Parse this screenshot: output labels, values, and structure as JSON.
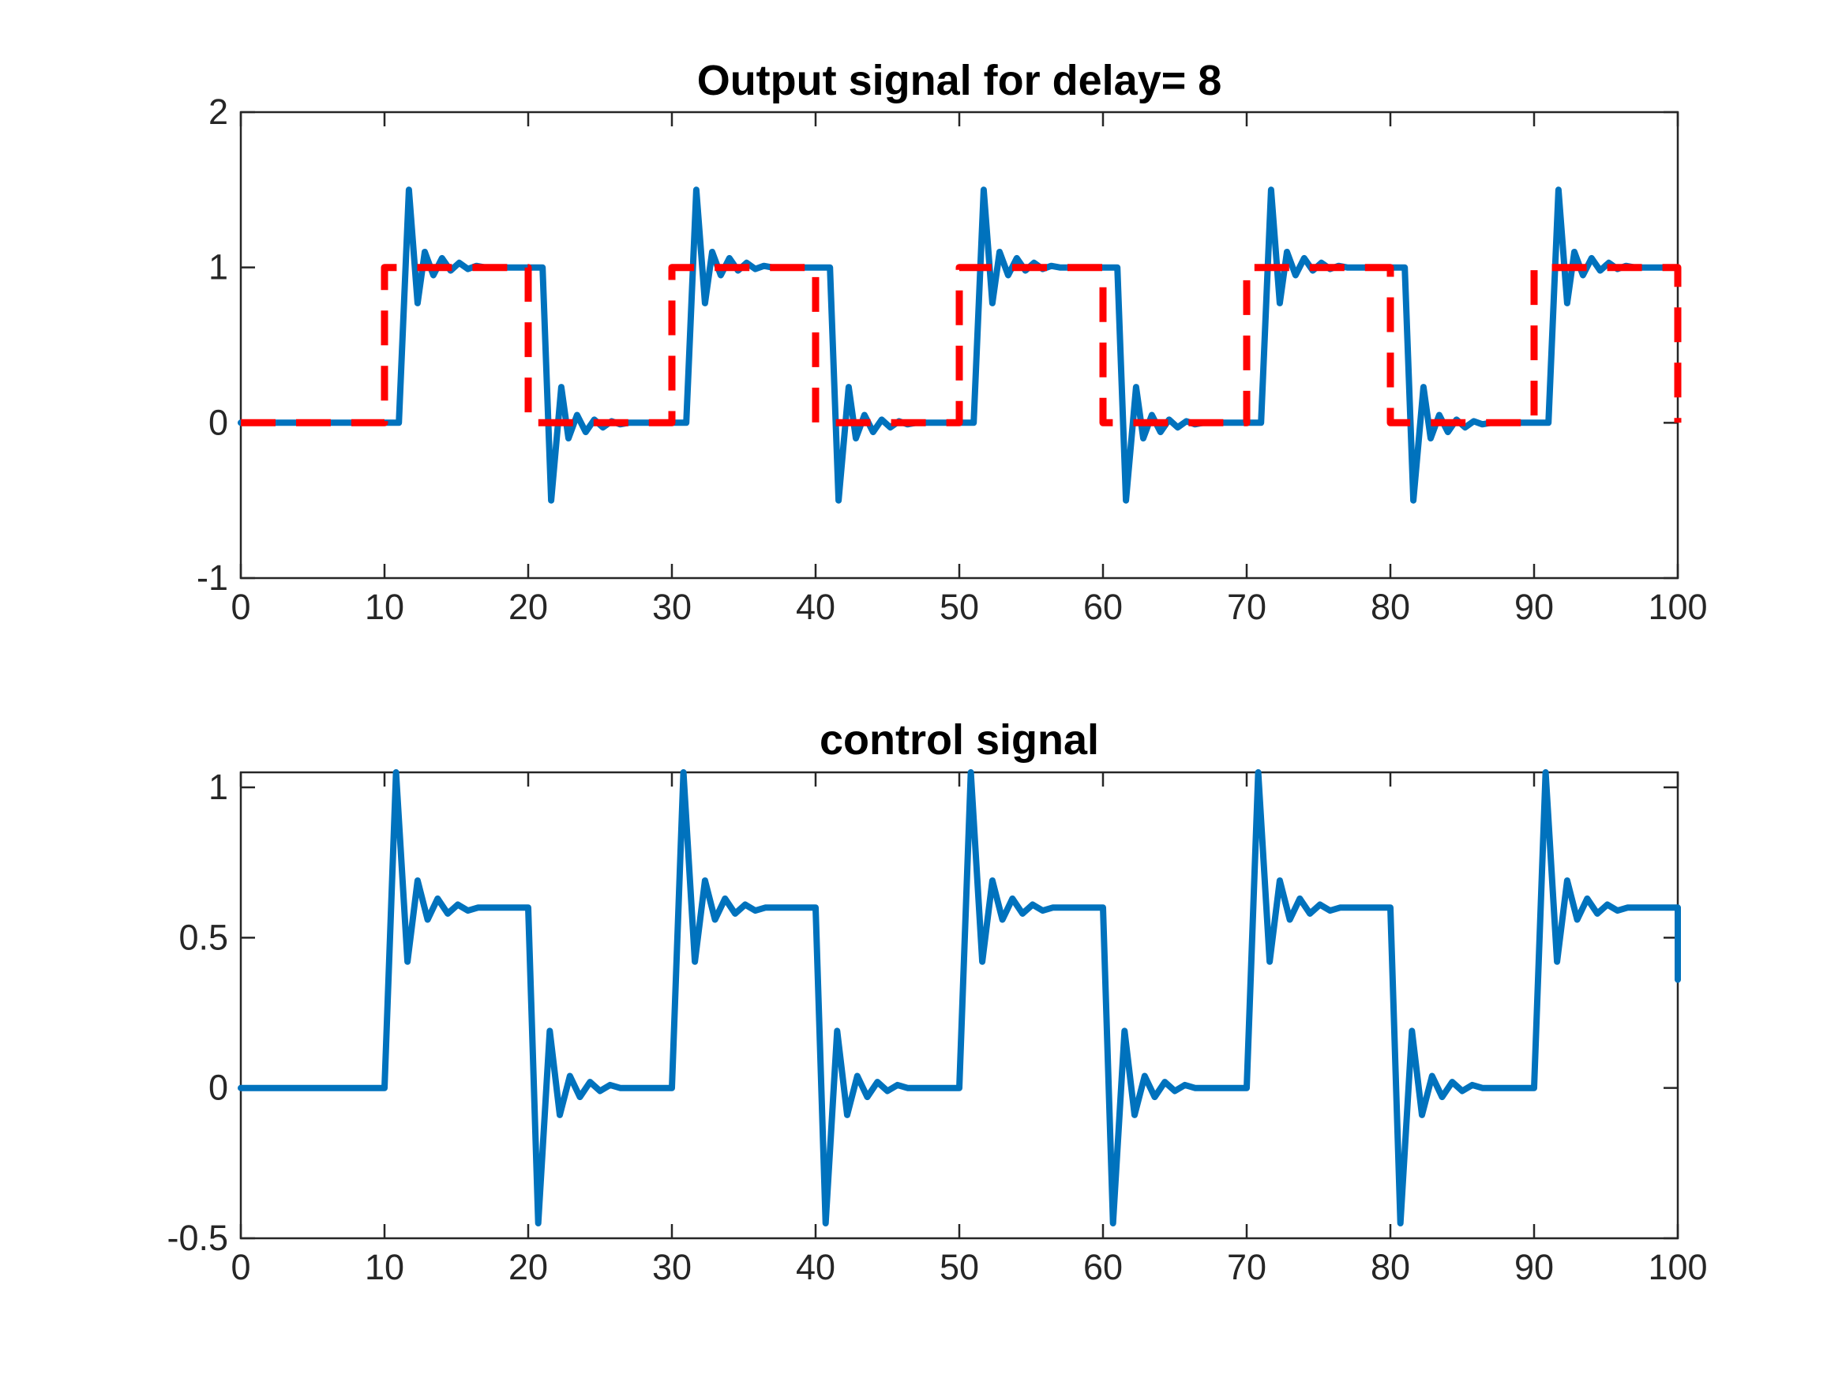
{
  "chart_data": [
    {
      "type": "line",
      "title": "Output signal for delay= 8",
      "xlabel": "",
      "ylabel": "",
      "xlim": [
        0,
        100
      ],
      "ylim": [
        -1,
        2
      ],
      "xticks": [
        0,
        10,
        20,
        30,
        40,
        50,
        60,
        70,
        80,
        90,
        100
      ],
      "yticks": [
        -1,
        0,
        1,
        2
      ],
      "grid": false,
      "colors": {
        "output": "#0072bd",
        "reference": "#ff0000"
      },
      "series": [
        {
          "style": "solid",
          "x": [
            0,
            11,
            11.7,
            12.3,
            12.8,
            13.4,
            14.0,
            14.6,
            15.2,
            15.8,
            16.4,
            17.0,
            17.6,
            18.2,
            20.0,
            21.0,
            21.6,
            22.3,
            22.8,
            23.4,
            24.0,
            24.6,
            25.2,
            25.8,
            26.4,
            27.0,
            28.0,
            31.0,
            31.7,
            32.3,
            32.8,
            33.4,
            34.0,
            34.6,
            35.2,
            35.8,
            36.4,
            37.0,
            37.6,
            38.2,
            40.0,
            41.0,
            41.6,
            42.3,
            42.8,
            43.4,
            44.0,
            44.6,
            45.2,
            45.8,
            46.4,
            47.0,
            48.0,
            51.0,
            51.7,
            52.3,
            52.8,
            53.4,
            54.0,
            54.6,
            55.2,
            55.8,
            56.4,
            57.0,
            57.6,
            58.2,
            60.0,
            61.0,
            61.6,
            62.3,
            62.8,
            63.4,
            64.0,
            64.6,
            65.2,
            65.8,
            66.4,
            67.0,
            68.0,
            71.0,
            71.7,
            72.3,
            72.8,
            73.4,
            74.0,
            74.6,
            75.2,
            75.8,
            76.4,
            77.0,
            77.6,
            78.2,
            80.0,
            81.0,
            81.6,
            82.3,
            82.8,
            83.4,
            84.0,
            84.6,
            85.2,
            85.8,
            86.4,
            87.0,
            88.0,
            91.0,
            91.7,
            92.3,
            92.8,
            93.4,
            94.0,
            94.6,
            95.2,
            95.8,
            96.4,
            97.0,
            97.6,
            98.2,
            100.0
          ],
          "y": [
            0,
            0,
            1.5,
            0.77,
            1.1,
            0.95,
            1.06,
            0.98,
            1.03,
            0.99,
            1.01,
            1.0,
            1.0,
            1.0,
            1.0,
            1.0,
            -0.5,
            0.23,
            -0.1,
            0.05,
            -0.06,
            0.02,
            -0.03,
            0.01,
            -0.01,
            0,
            0,
            0,
            1.5,
            0.77,
            1.1,
            0.95,
            1.06,
            0.98,
            1.03,
            0.99,
            1.01,
            1.0,
            1.0,
            1.0,
            1.0,
            1.0,
            -0.5,
            0.23,
            -0.1,
            0.05,
            -0.06,
            0.02,
            -0.03,
            0.01,
            -0.01,
            0,
            0,
            0,
            1.5,
            0.77,
            1.1,
            0.95,
            1.06,
            0.98,
            1.03,
            0.99,
            1.01,
            1.0,
            1.0,
            1.0,
            1.0,
            1.0,
            -0.5,
            0.23,
            -0.1,
            0.05,
            -0.06,
            0.02,
            -0.03,
            0.01,
            -0.01,
            0,
            0,
            0,
            1.5,
            0.77,
            1.1,
            0.95,
            1.06,
            0.98,
            1.03,
            0.99,
            1.01,
            1.0,
            1.0,
            1.0,
            1.0,
            1.0,
            -0.5,
            0.23,
            -0.1,
            0.05,
            -0.06,
            0.02,
            -0.03,
            0.01,
            -0.01,
            0,
            0,
            0,
            1.5,
            0.77,
            1.1,
            0.95,
            1.06,
            0.98,
            1.03,
            0.99,
            1.01,
            1.0,
            1.0,
            1.0,
            1.0
          ]
        },
        {
          "style": "dashed",
          "x": [
            0,
            10,
            10,
            20,
            20,
            30,
            30,
            40,
            40,
            50,
            50,
            60,
            60,
            70,
            70,
            80,
            80,
            90,
            90,
            100,
            100
          ],
          "y": [
            0,
            0,
            1,
            1,
            0,
            0,
            1,
            1,
            0,
            0,
            1,
            1,
            0,
            0,
            1,
            1,
            0,
            0,
            1,
            1,
            0
          ]
        }
      ]
    },
    {
      "type": "line",
      "title": "control signal",
      "xlabel": "",
      "ylabel": "",
      "xlim": [
        0,
        100
      ],
      "ylim": [
        -0.5,
        1.05
      ],
      "xticks": [
        0,
        10,
        20,
        30,
        40,
        50,
        60,
        70,
        80,
        90,
        100
      ],
      "yticks": [
        -0.5,
        0,
        0.5,
        1
      ],
      "ytick_labels": [
        "-0.5",
        "0",
        "0.5",
        "1"
      ],
      "grid": false,
      "colors": {
        "control": "#0072bd"
      },
      "series": [
        {
          "style": "solid",
          "x": [
            0,
            10,
            10.8,
            11.6,
            12.3,
            13.0,
            13.7,
            14.4,
            15.1,
            15.8,
            16.5,
            17.2,
            18.0,
            20.0,
            20.7,
            21.5,
            22.2,
            22.9,
            23.6,
            24.3,
            25.0,
            25.7,
            26.4,
            27.2,
            28.0,
            30.0,
            30.8,
            31.6,
            32.3,
            33.0,
            33.7,
            34.4,
            35.1,
            35.8,
            36.5,
            37.2,
            38.0,
            40.0,
            40.7,
            41.5,
            42.2,
            42.9,
            43.6,
            44.3,
            45.0,
            45.7,
            46.4,
            47.2,
            48.0,
            50.0,
            50.8,
            51.6,
            52.3,
            53.0,
            53.7,
            54.4,
            55.1,
            55.8,
            56.5,
            57.2,
            58.0,
            60.0,
            60.7,
            61.5,
            62.2,
            62.9,
            63.6,
            64.3,
            65.0,
            65.7,
            66.4,
            67.2,
            68.0,
            70.0,
            70.8,
            71.6,
            72.3,
            73.0,
            73.7,
            74.4,
            75.1,
            75.8,
            76.5,
            77.2,
            78.0,
            80.0,
            80.7,
            81.5,
            82.2,
            82.9,
            83.6,
            84.3,
            85.0,
            85.7,
            86.4,
            87.2,
            88.0,
            90.0,
            90.8,
            91.6,
            92.3,
            93.0,
            93.7,
            94.4,
            95.1,
            95.8,
            96.5,
            97.2,
            98.0,
            100.0,
            100.0
          ],
          "y": [
            0,
            0,
            1.05,
            0.42,
            0.69,
            0.56,
            0.63,
            0.58,
            0.61,
            0.59,
            0.6,
            0.6,
            0.6,
            0.6,
            -0.45,
            0.19,
            -0.09,
            0.04,
            -0.03,
            0.02,
            -0.01,
            0.01,
            0,
            0,
            0,
            0,
            1.05,
            0.42,
            0.69,
            0.56,
            0.63,
            0.58,
            0.61,
            0.59,
            0.6,
            0.6,
            0.6,
            0.6,
            -0.45,
            0.19,
            -0.09,
            0.04,
            -0.03,
            0.02,
            -0.01,
            0.01,
            0,
            0,
            0,
            0,
            1.05,
            0.42,
            0.69,
            0.56,
            0.63,
            0.58,
            0.61,
            0.59,
            0.6,
            0.6,
            0.6,
            0.6,
            -0.45,
            0.19,
            -0.09,
            0.04,
            -0.03,
            0.02,
            -0.01,
            0.01,
            0,
            0,
            0,
            0,
            1.05,
            0.42,
            0.69,
            0.56,
            0.63,
            0.58,
            0.61,
            0.59,
            0.6,
            0.6,
            0.6,
            0.6,
            -0.45,
            0.19,
            -0.09,
            0.04,
            -0.03,
            0.02,
            -0.01,
            0.01,
            0,
            0,
            0,
            0,
            1.05,
            0.42,
            0.69,
            0.56,
            0.63,
            0.58,
            0.61,
            0.59,
            0.6,
            0.6,
            0.6,
            0.6,
            0.36
          ]
        }
      ]
    }
  ]
}
